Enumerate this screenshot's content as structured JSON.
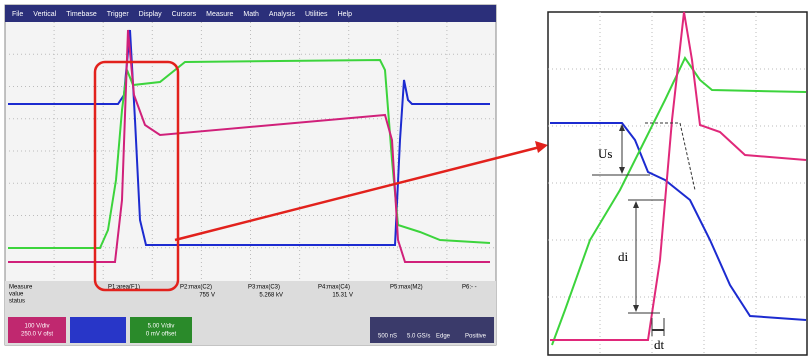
{
  "menu": [
    "File",
    "Vertical",
    "Timebase",
    "Trigger",
    "Display",
    "Cursors",
    "Measure",
    "Math",
    "Analysis",
    "Utilities",
    "Help"
  ],
  "measure": {
    "labels": [
      "Measure",
      "value",
      "status"
    ],
    "params": [
      {
        "name": "P1:area(F1)",
        "value": null
      },
      {
        "name": "P2:max(C2)",
        "value": "755 V"
      },
      {
        "name": "P3:max(C3)",
        "value": "5.268 kV"
      },
      {
        "name": "P4:max(C4)",
        "value": "15.31 V"
      },
      {
        "name": "P5:max(M2)",
        "value": null
      },
      {
        "name": "P6:- -",
        "value": null
      }
    ]
  },
  "channels": [
    [
      "100 V/div",
      "250.0 V ofst"
    ],
    [
      "5.00 V/div",
      "0 mV offset"
    ]
  ],
  "timebase": [
    "500 nS",
    "5.0 GS/s",
    "Edge",
    "Positive"
  ],
  "annotations": {
    "us": "Us",
    "di": "di",
    "dt": "dt"
  }
}
